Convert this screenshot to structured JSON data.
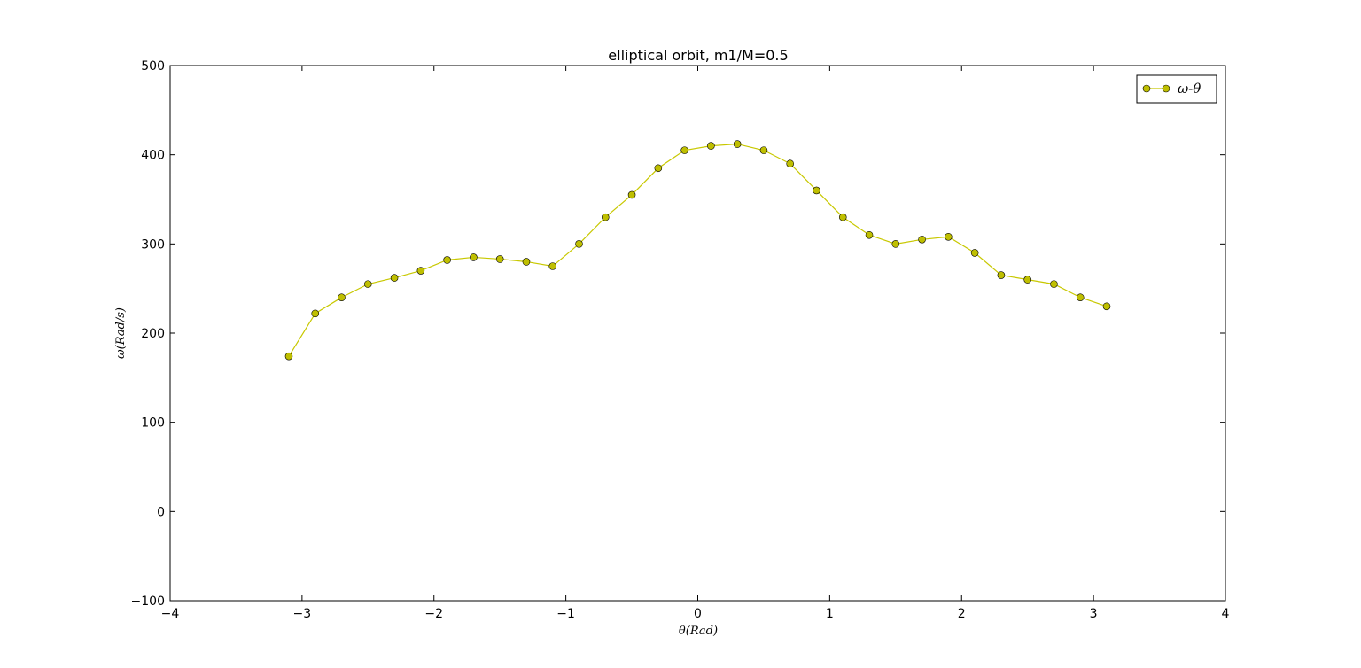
{
  "chart_data": {
    "type": "line",
    "title": "elliptical orbit, m1/M=0.5",
    "xlabel": "θ(Rad)",
    "ylabel": "ω(Rad/s)",
    "xlim": [
      -4,
      4
    ],
    "ylim": [
      -100,
      500
    ],
    "xticks": [
      "−4",
      "−3",
      "−2",
      "−1",
      "0",
      "1",
      "2",
      "3",
      "4"
    ],
    "yticks": [
      "−100",
      "0",
      "100",
      "200",
      "300",
      "400",
      "500"
    ],
    "grid": false,
    "legend_position": "top-right",
    "colors": {
      "series": "#bfbf00",
      "marker_edge": "#000000",
      "line": "#c8c800"
    },
    "series": [
      {
        "name": "ω-θ",
        "marker": "circle",
        "x": [
          -3.1,
          -2.9,
          -2.7,
          -2.5,
          -2.3,
          -2.1,
          -1.9,
          -1.7,
          -1.5,
          -1.3,
          -1.1,
          -0.9,
          -0.7,
          -0.5,
          -0.3,
          -0.1,
          0.1,
          0.3,
          0.5,
          0.7,
          0.9,
          1.1,
          1.3,
          1.5,
          1.7,
          1.9,
          2.1,
          2.3,
          2.5,
          2.7,
          2.9,
          3.1
        ],
        "y": [
          174,
          222,
          240,
          255,
          262,
          270,
          282,
          285,
          283,
          280,
          275,
          300,
          330,
          355,
          385,
          405,
          410,
          412,
          405,
          390,
          360,
          330,
          310,
          300,
          305,
          308,
          290,
          265,
          260,
          255,
          240,
          230
        ]
      }
    ],
    "annotations": []
  }
}
